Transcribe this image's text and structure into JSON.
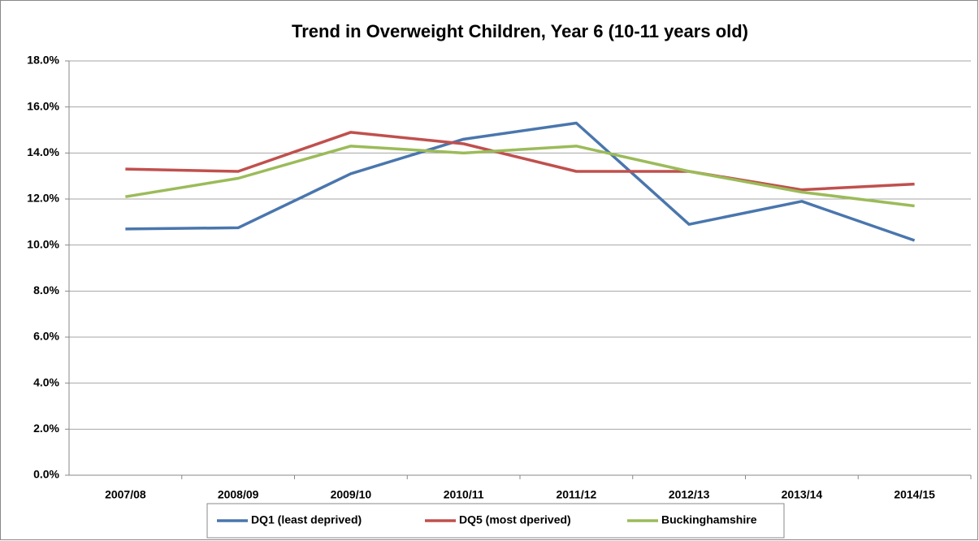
{
  "chart_data": {
    "type": "line",
    "title": "Trend in Overweight Children, Year 6 (10-11 years old)",
    "categories": [
      "2007/08",
      "2008/09",
      "2009/10",
      "2010/11",
      "2011/12",
      "2012/13",
      "2013/14",
      "2014/15"
    ],
    "series": [
      {
        "name": "DQ1 (least deprived)",
        "color": "#4a76ad",
        "values": [
          10.7,
          10.75,
          13.1,
          14.6,
          15.3,
          10.9,
          11.9,
          10.2
        ]
      },
      {
        "name": "DQ5 (most dperived)",
        "color": "#c0504d",
        "values": [
          13.3,
          13.2,
          14.9,
          14.4,
          13.2,
          13.2,
          12.4,
          12.65
        ]
      },
      {
        "name": "Buckinghamshire",
        "color": "#9bbb59",
        "values": [
          12.1,
          12.9,
          14.3,
          14.0,
          14.3,
          13.2,
          12.3,
          11.7
        ]
      }
    ],
    "ylim": [
      0,
      18
    ],
    "yticks": [
      {
        "value": 0,
        "label": "0.0%"
      },
      {
        "value": 2,
        "label": "2.0%"
      },
      {
        "value": 4,
        "label": "4.0%"
      },
      {
        "value": 6,
        "label": "6.0%"
      },
      {
        "value": 8,
        "label": "8.0%"
      },
      {
        "value": 10,
        "label": "10.0%"
      },
      {
        "value": 12,
        "label": "12.0%"
      },
      {
        "value": 14,
        "label": "14.0%"
      },
      {
        "value": 16,
        "label": "16.0%"
      },
      {
        "value": 18,
        "label": "18.0%"
      }
    ],
    "grid": true,
    "legend": "bottom"
  }
}
